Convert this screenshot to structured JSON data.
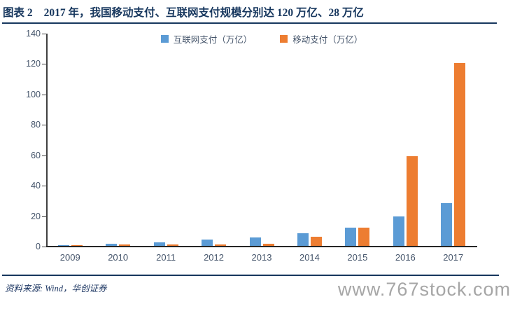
{
  "header": {
    "label": "图表 2",
    "title": "2017 年，我国移动支付、互联网支付规模分别达 120 万亿、28 万亿"
  },
  "chart_data": {
    "type": "bar",
    "categories": [
      "2009",
      "2010",
      "2011",
      "2012",
      "2013",
      "2014",
      "2015",
      "2016",
      "2017"
    ],
    "series": [
      {
        "key": "internet-payment",
        "name": "互联网支付（万亿）",
        "color": "#5B9BD5",
        "values": [
          0.6,
          1.3,
          2.5,
          4.0,
          5.5,
          8.5,
          12.0,
          19.5,
          28.0
        ]
      },
      {
        "key": "mobile-payment",
        "name": "移动支付（万亿）",
        "color": "#ED7D31",
        "values": [
          0.6,
          0.8,
          1.0,
          1.0,
          1.5,
          6.0,
          12.2,
          59.0,
          120.0
        ]
      }
    ],
    "title": "",
    "xlabel": "",
    "ylabel": "",
    "ylim": [
      0,
      140
    ],
    "ytick_step": 20,
    "grid": false,
    "legend_position": "top"
  },
  "footer": {
    "source": "资料来源: Wind，华创证券",
    "watermark": "www.767stock.com"
  },
  "colors": {
    "accent_navy": "#17375E",
    "axis_text": "#44546A",
    "axis_line": "#404040",
    "bar_blue": "#5B9BD5",
    "bar_orange": "#ED7D31",
    "watermark_gray": "#A6A6A6"
  }
}
